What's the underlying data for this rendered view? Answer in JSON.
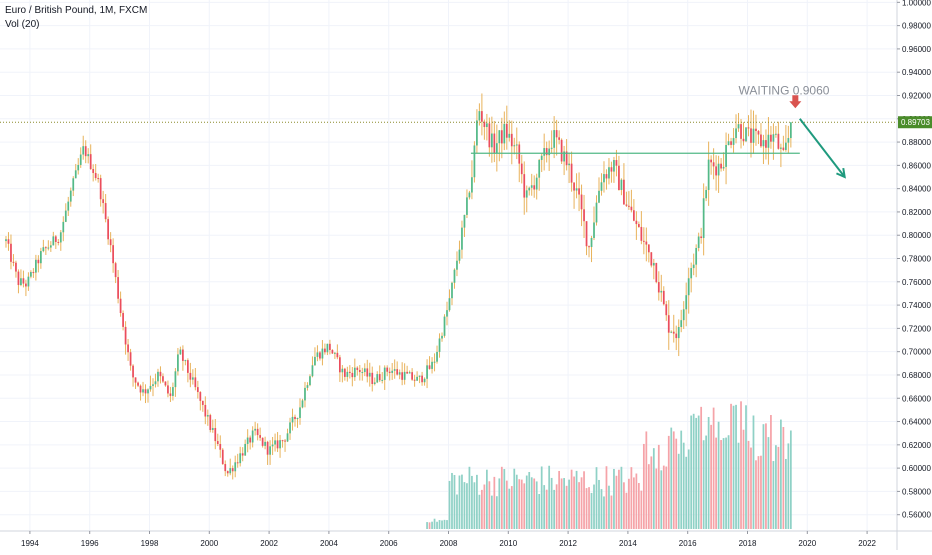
{
  "legend": {
    "symbol": "Euro / British Pound, 1M, FXCM",
    "volume": "Vol (20)"
  },
  "colors": {
    "up": "#53b987",
    "down": "#eb4d5c",
    "wick": "#e8b25a",
    "vol_up": "#8fd1c6",
    "vol_down": "#f5a3a8",
    "grid": "#f0f3fa",
    "price_line": "#8a8a2a",
    "price_badge": "#4a8c2a",
    "support_line": "#53b987",
    "arrow_red": "#d9534f",
    "arrow_teal": "#1f9a7e",
    "annotation_text": "#8a8f98"
  },
  "chart_data": {
    "type": "candlestick",
    "title": "Euro / British Pound, 1M, FXCM",
    "x_tick_labels": [
      "1994",
      "1996",
      "1998",
      "2000",
      "2002",
      "2004",
      "2006",
      "2008",
      "2010",
      "2012",
      "2014",
      "2016",
      "2018",
      "2020",
      "2022"
    ],
    "y_tick_labels": [
      "0.56000",
      "0.58000",
      "0.60000",
      "0.62000",
      "0.64000",
      "0.66000",
      "0.68000",
      "0.70000",
      "0.72000",
      "0.74000",
      "0.76000",
      "0.78000",
      "0.80000",
      "0.82000",
      "0.84000",
      "0.86000",
      "0.88000",
      "0.90000",
      "0.92000",
      "0.94000",
      "0.96000",
      "0.98000",
      "1.00000"
    ],
    "ylim": [
      0.546,
      1.002
    ],
    "xlim": [
      1993.0,
      2023.0
    ],
    "x_first_tick": 1994,
    "x_tick_step": 2,
    "last_price": 0.89703,
    "last_price_label": "0.89703",
    "support_level": 0.8704,
    "support_from": 2008.75,
    "support_to": 2019.75,
    "annotation": "WAITING 0.9060",
    "forecast_arrow": {
      "from": [
        2019.75,
        0.9
      ],
      "to": [
        2021.25,
        0.85
      ]
    },
    "volume": {
      "shown_from": 2008.0,
      "max_relative_height": 1.0
    },
    "anchors": [
      [
        1993.2,
        0.795
      ],
      [
        1993.6,
        0.76
      ],
      [
        1993.9,
        0.758
      ],
      [
        1994.4,
        0.785
      ],
      [
        1995.0,
        0.8
      ],
      [
        1995.4,
        0.84
      ],
      [
        1995.8,
        0.875
      ],
      [
        1996.3,
        0.845
      ],
      [
        1996.7,
        0.79
      ],
      [
        1997.0,
        0.74
      ],
      [
        1997.4,
        0.68
      ],
      [
        1997.8,
        0.665
      ],
      [
        1998.3,
        0.68
      ],
      [
        1998.7,
        0.66
      ],
      [
        1999.0,
        0.7
      ],
      [
        1999.5,
        0.67
      ],
      [
        2000.2,
        0.625
      ],
      [
        2000.6,
        0.595
      ],
      [
        2001.0,
        0.61
      ],
      [
        2001.5,
        0.63
      ],
      [
        2002.0,
        0.615
      ],
      [
        2002.5,
        0.625
      ],
      [
        2003.0,
        0.65
      ],
      [
        2003.5,
        0.695
      ],
      [
        2004.0,
        0.705
      ],
      [
        2004.5,
        0.68
      ],
      [
        2005.0,
        0.685
      ],
      [
        2005.5,
        0.675
      ],
      [
        2006.0,
        0.685
      ],
      [
        2006.5,
        0.68
      ],
      [
        2007.0,
        0.675
      ],
      [
        2007.5,
        0.69
      ],
      [
        2008.0,
        0.74
      ],
      [
        2008.4,
        0.795
      ],
      [
        2008.8,
        0.855
      ],
      [
        2009.0,
        0.91
      ],
      [
        2009.5,
        0.875
      ],
      [
        2009.9,
        0.89
      ],
      [
        2010.3,
        0.87
      ],
      [
        2010.6,
        0.83
      ],
      [
        2011.0,
        0.855
      ],
      [
        2011.5,
        0.885
      ],
      [
        2012.0,
        0.86
      ],
      [
        2012.3,
        0.835
      ],
      [
        2012.7,
        0.79
      ],
      [
        2013.1,
        0.85
      ],
      [
        2013.5,
        0.86
      ],
      [
        2014.0,
        0.825
      ],
      [
        2014.5,
        0.795
      ],
      [
        2014.9,
        0.775
      ],
      [
        2015.3,
        0.725
      ],
      [
        2015.7,
        0.715
      ],
      [
        2016.0,
        0.765
      ],
      [
        2016.4,
        0.795
      ],
      [
        2016.7,
        0.86
      ],
      [
        2017.1,
        0.86
      ],
      [
        2017.6,
        0.895
      ],
      [
        2018.0,
        0.885
      ],
      [
        2018.5,
        0.88
      ],
      [
        2018.9,
        0.885
      ],
      [
        2019.2,
        0.865
      ],
      [
        2019.5,
        0.897
      ]
    ]
  }
}
